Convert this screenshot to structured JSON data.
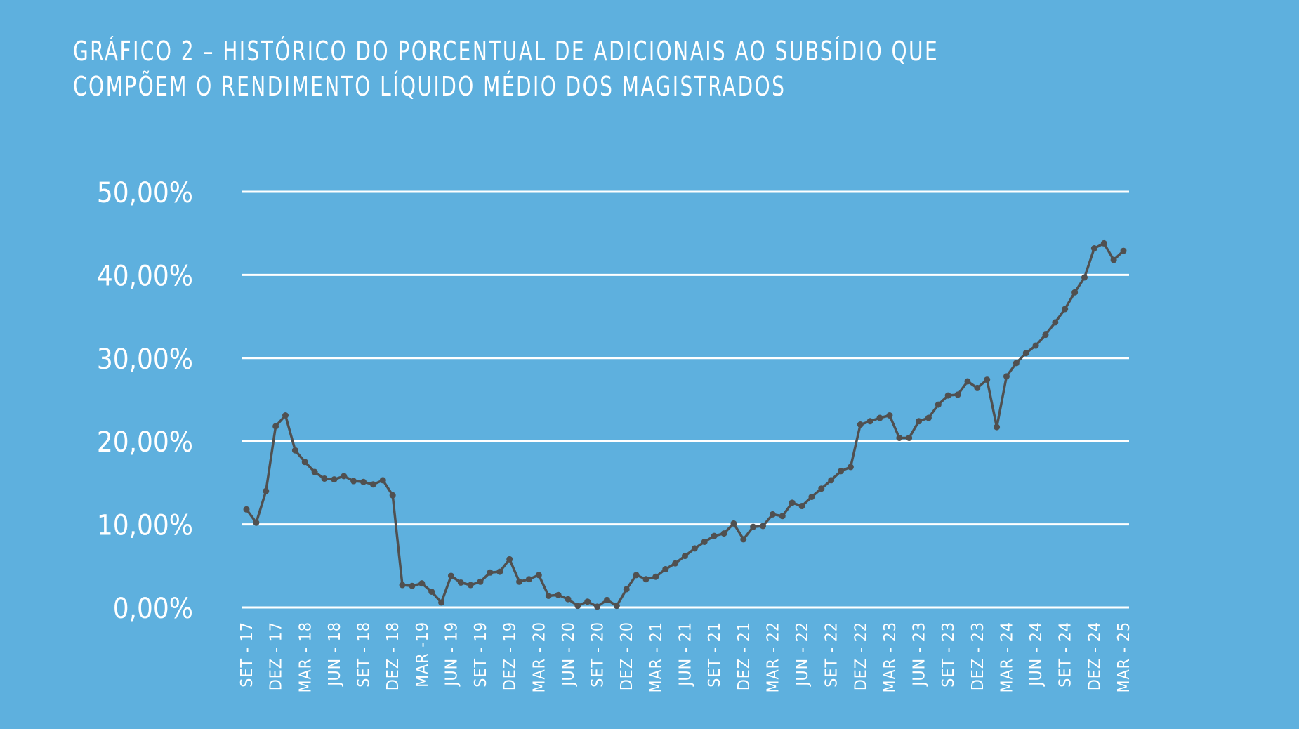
{
  "chart_data": {
    "type": "line",
    "title": "Gráfico 2 – Histórico do porcentual de adicionais ao subsídio que compõem o rendimento líquido médio dos magistrados",
    "xlabel": "",
    "ylabel": "",
    "ylim": [
      0,
      50
    ],
    "y_ticks": [
      "0,00%",
      "10,00%",
      "20,00%",
      "30,00%",
      "40,00%",
      "50,00%"
    ],
    "x_tick_labels": [
      "SET - 17",
      "DEZ - 17",
      "MAR - 18",
      "JUN - 18",
      "SET - 18",
      "DEZ - 18",
      "MAR -19",
      "JUN - 19",
      "SET - 19",
      "DEZ - 19",
      "MAR - 20",
      "JUN - 20",
      "SET - 20",
      "DEZ - 20",
      "MAR - 21",
      "JUN - 21",
      "SET - 21",
      "DEZ - 21",
      "MAR - 22",
      "JUN - 22",
      "SET - 22",
      "DEZ - 22",
      "MAR - 23",
      "JUN - 23",
      "SET - 23",
      "DEZ - 23",
      "MAR - 24",
      "JUN - 24",
      "SET - 24",
      "DEZ - 24",
      "MAR - 25"
    ],
    "grid": true,
    "legend": "none",
    "colors": {
      "background": "#5eb0de",
      "line": "#505050",
      "grid": "#ffffff",
      "text": "#ffffff"
    },
    "series": [
      {
        "values": [
          11.8,
          10.2,
          14.0,
          21.8,
          23.1,
          18.9,
          17.5,
          16.3,
          15.5,
          15.4,
          15.8,
          15.2,
          15.1,
          14.8,
          15.3,
          13.5,
          2.7,
          2.6,
          2.9,
          1.9,
          0.6,
          3.8,
          3.0,
          2.7,
          3.1,
          4.2,
          4.3,
          5.8,
          3.1,
          3.4,
          3.9,
          1.4,
          1.5,
          1.0,
          0.2,
          0.7,
          0.1,
          0.9,
          0.2,
          2.2,
          3.9,
          3.4,
          3.7,
          4.6,
          5.3,
          6.2,
          7.1,
          7.9,
          8.6,
          8.9,
          10.1,
          8.2,
          9.7,
          9.8,
          11.2,
          11.0,
          12.6,
          12.2,
          13.3,
          14.3,
          15.3,
          16.4,
          16.9,
          22.0,
          22.4,
          22.8,
          23.1,
          20.4,
          20.4,
          22.4,
          22.8,
          24.4,
          25.5,
          25.6,
          27.2,
          26.4,
          27.4,
          21.7,
          27.8,
          29.4,
          30.6,
          31.5,
          32.8,
          34.3,
          35.9,
          37.9,
          39.7,
          43.2,
          43.8,
          41.8,
          42.9
        ]
      }
    ]
  }
}
